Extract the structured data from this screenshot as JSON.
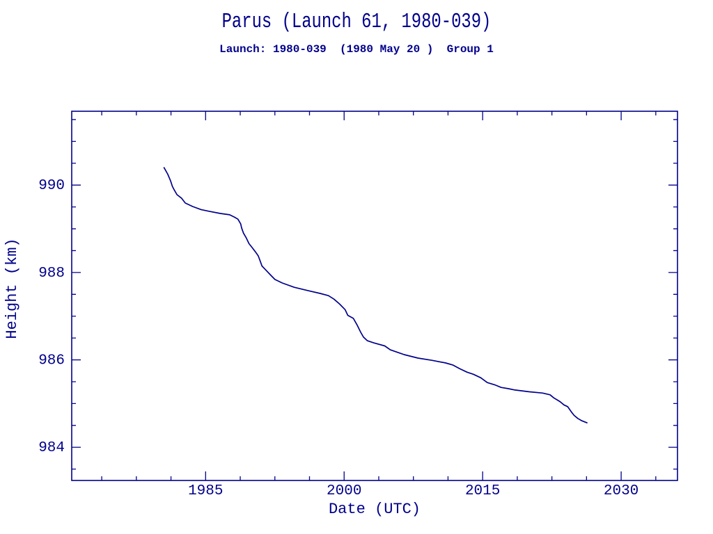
{
  "page": {
    "background": "#FFFFFF",
    "accent": "#00008B"
  },
  "chart_data": {
    "type": "line",
    "title": "Parus (Launch 61, 1980-039)",
    "subtitle": "Launch: 1980-039  (1980 May 20 )  Group 1",
    "xlabel": "Date (UTC)",
    "ylabel": "Height (km)",
    "xlim": [
      1970.5,
      2036.1
    ],
    "ylim": [
      983.24,
      991.69
    ],
    "grid": false,
    "legend": "none",
    "frame": "box-with-inward-ticks",
    "line_color": "#00008B",
    "axis_color": "#00008B",
    "x_ticks_major": [
      1985,
      2000,
      2015,
      2030
    ],
    "x_tick_labels": [
      "1985",
      "2000",
      "2015",
      "2030"
    ],
    "x_ticks_minor": [
      1973.75,
      1977.5,
      1981.25,
      1988.75,
      1992.5,
      1996.25,
      2003.75,
      2007.5,
      2011.25,
      2018.75,
      2022.5,
      2026.25,
      2033.75
    ],
    "y_ticks_major": [
      984,
      986,
      988,
      990
    ],
    "y_tick_labels": [
      "984",
      "986",
      "988",
      "990"
    ],
    "y_ticks_minor": [
      983.5,
      984.5,
      985.0,
      985.5,
      986.5,
      987.0,
      987.5,
      988.5,
      989.0,
      989.5,
      990.5,
      991.0,
      991.5
    ],
    "series": [
      {
        "name": "height_km",
        "points": [
          [
            1980.5,
            990.4
          ],
          [
            1980.9,
            990.25
          ],
          [
            1981.2,
            990.1
          ],
          [
            1981.4,
            989.97
          ],
          [
            1981.6,
            989.89
          ],
          [
            1981.9,
            989.78
          ],
          [
            1982.4,
            989.7
          ],
          [
            1982.8,
            989.59
          ],
          [
            1983.6,
            989.51
          ],
          [
            1984.5,
            989.44
          ],
          [
            1985.4,
            989.4
          ],
          [
            1986.6,
            989.35
          ],
          [
            1987.6,
            989.32
          ],
          [
            1988.1,
            989.27
          ],
          [
            1988.5,
            989.22
          ],
          [
            1988.8,
            989.11
          ],
          [
            1988.9,
            989.02
          ],
          [
            1989.1,
            988.9
          ],
          [
            1989.4,
            988.79
          ],
          [
            1989.7,
            988.66
          ],
          [
            1990.0,
            988.58
          ],
          [
            1990.4,
            988.47
          ],
          [
            1990.7,
            988.38
          ],
          [
            1990.9,
            988.27
          ],
          [
            1991.1,
            988.15
          ],
          [
            1991.5,
            988.06
          ],
          [
            1992.0,
            987.95
          ],
          [
            1992.5,
            987.84
          ],
          [
            1993.3,
            987.76
          ],
          [
            1994.6,
            987.66
          ],
          [
            1996.2,
            987.58
          ],
          [
            1997.4,
            987.52
          ],
          [
            1998.3,
            987.47
          ],
          [
            1998.9,
            987.39
          ],
          [
            1999.5,
            987.28
          ],
          [
            2000.1,
            987.15
          ],
          [
            2000.4,
            987.02
          ],
          [
            2001.0,
            986.95
          ],
          [
            2001.4,
            986.8
          ],
          [
            2001.8,
            986.63
          ],
          [
            2002.1,
            986.52
          ],
          [
            2002.5,
            986.44
          ],
          [
            2003.2,
            986.39
          ],
          [
            2004.4,
            986.32
          ],
          [
            2005.0,
            986.23
          ],
          [
            2006.5,
            986.12
          ],
          [
            2008.0,
            986.04
          ],
          [
            2009.5,
            985.99
          ],
          [
            2011.0,
            985.93
          ],
          [
            2011.8,
            985.88
          ],
          [
            2012.5,
            985.8
          ],
          [
            2013.3,
            985.72
          ],
          [
            2014.0,
            985.67
          ],
          [
            2014.8,
            985.59
          ],
          [
            2015.5,
            985.48
          ],
          [
            2016.3,
            985.43
          ],
          [
            2017.0,
            985.37
          ],
          [
            2017.8,
            985.34
          ],
          [
            2018.5,
            985.31
          ],
          [
            2020.0,
            985.27
          ],
          [
            2021.5,
            985.24
          ],
          [
            2022.3,
            985.2
          ],
          [
            2022.7,
            985.13
          ],
          [
            2023.1,
            985.08
          ],
          [
            2023.4,
            985.04
          ],
          [
            2023.8,
            984.97
          ],
          [
            2024.2,
            984.93
          ],
          [
            2024.6,
            984.81
          ],
          [
            2024.9,
            984.73
          ],
          [
            2025.3,
            984.66
          ],
          [
            2025.7,
            984.61
          ],
          [
            2026.3,
            984.56
          ]
        ]
      }
    ]
  }
}
